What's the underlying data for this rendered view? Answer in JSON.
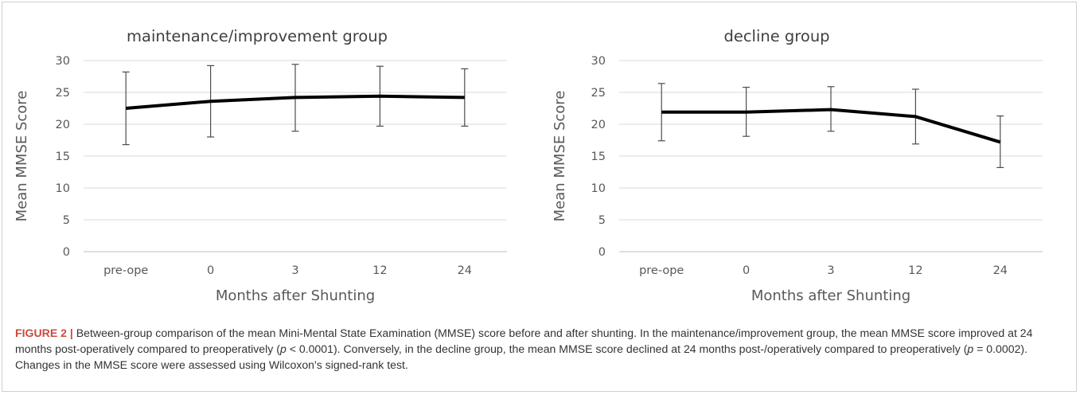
{
  "chart_data": [
    {
      "type": "line",
      "title": "maintenance/improvement group",
      "xlabel": "Months after Shunting",
      "ylabel": "Mean MMSE Score",
      "categories": [
        "pre-ope",
        "0",
        "3",
        "12",
        "24"
      ],
      "series": [
        {
          "values": [
            22.5,
            23.6,
            24.2,
            24.4,
            24.2
          ],
          "error_low": [
            16.8,
            18.0,
            18.9,
            19.7,
            19.7
          ],
          "error_high": [
            28.2,
            29.2,
            29.4,
            29.1,
            28.7
          ]
        }
      ],
      "ylim": [
        0,
        30
      ],
      "yticks": [
        0,
        5,
        10,
        15,
        20,
        25,
        30
      ],
      "grid": true,
      "line_color": "#000000"
    },
    {
      "type": "line",
      "title": "decline group",
      "xlabel": "Months after Shunting",
      "ylabel": "Mean MMSE Score",
      "categories": [
        "pre-ope",
        "0",
        "3",
        "12",
        "24"
      ],
      "series": [
        {
          "values": [
            21.9,
            21.9,
            22.3,
            21.2,
            17.2
          ],
          "error_low": [
            17.4,
            18.1,
            18.9,
            16.9,
            13.2
          ],
          "error_high": [
            26.4,
            25.8,
            25.9,
            25.5,
            21.3
          ]
        }
      ],
      "ylim": [
        0,
        30
      ],
      "yticks": [
        0,
        5,
        10,
        15,
        20,
        25,
        30
      ],
      "grid": true,
      "line_color": "#000000"
    }
  ],
  "caption": {
    "label": "FIGURE 2 |",
    "parts": [
      " Between-group comparison of the mean Mini-Mental State Examination (MMSE) score before and after shunting. In the maintenance/improvement group, the mean MMSE score improved at 24 months post-operatively compared to preoperatively (",
      "p",
      " < 0.0001). Conversely, in the decline group, the mean MMSE score declined at 24 months post-/operatively compared to preoperatively (",
      "p",
      " = 0.0002). Changes in the MMSE score were assessed using Wilcoxon's signed-rank test."
    ]
  }
}
